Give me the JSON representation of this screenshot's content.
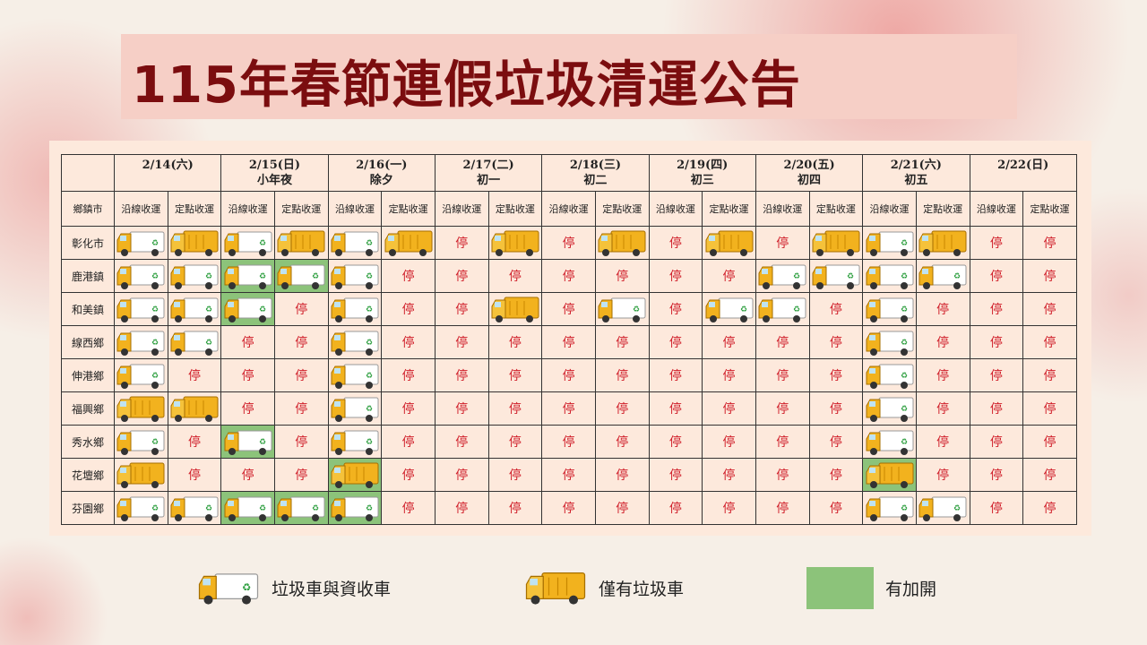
{
  "title": "115年春節連假垃圾清運公告",
  "table": {
    "corner": "鄉鎮市",
    "dates": [
      {
        "date": "2/14(六)"
      },
      {
        "date": "2/15(日)",
        "note": "小年夜"
      },
      {
        "date": "2/16(一)",
        "note": "除夕"
      },
      {
        "date": "2/17(二)",
        "note": "初一"
      },
      {
        "date": "2/18(三)",
        "note": "初二"
      },
      {
        "date": "2/19(四)",
        "note": "初三"
      },
      {
        "date": "2/20(五)",
        "note": "初四"
      },
      {
        "date": "2/21(六)",
        "note": "初五"
      },
      {
        "date": "2/22(日)"
      }
    ],
    "collection_types": [
      "沿線收運",
      "定點收運"
    ],
    "rows": [
      {
        "town": "彰化市",
        "cells": [
          {
            "truck": "both"
          },
          {
            "truck": "garbage"
          },
          {
            "truck": "both"
          },
          {
            "truck": "garbage"
          },
          {
            "truck": "both"
          },
          {
            "truck": "garbage"
          },
          "停",
          {
            "truck": "garbage"
          },
          "停",
          {
            "truck": "garbage"
          },
          "停",
          {
            "truck": "garbage"
          },
          "停",
          {
            "truck": "garbage"
          },
          {
            "truck": "both"
          },
          {
            "truck": "garbage"
          },
          "停",
          "停"
        ]
      },
      {
        "town": "鹿港鎮",
        "cells": [
          {
            "truck": "both"
          },
          {
            "truck": "both"
          },
          {
            "truck": "both",
            "added": true
          },
          {
            "truck": "both",
            "added": true
          },
          {
            "truck": "both"
          },
          "停",
          "停",
          "停",
          "停",
          "停",
          "停",
          "停",
          {
            "truck": "both"
          },
          {
            "truck": "both"
          },
          {
            "truck": "both"
          },
          {
            "truck": "both"
          },
          "停",
          "停"
        ]
      },
      {
        "town": "和美鎮",
        "cells": [
          {
            "truck": "both"
          },
          {
            "truck": "both"
          },
          {
            "truck": "both",
            "added": true
          },
          "停",
          {
            "truck": "both"
          },
          "停",
          "停",
          {
            "truck": "garbage"
          },
          "停",
          {
            "truck": "both"
          },
          "停",
          {
            "truck": "both"
          },
          {
            "truck": "both"
          },
          "停",
          {
            "truck": "both"
          },
          "停",
          "停",
          "停"
        ]
      },
      {
        "town": "線西鄉",
        "cells": [
          {
            "truck": "both"
          },
          {
            "truck": "both"
          },
          "停",
          "停",
          {
            "truck": "both"
          },
          "停",
          "停",
          "停",
          "停",
          "停",
          "停",
          "停",
          "停",
          "停",
          {
            "truck": "both"
          },
          "停",
          "停",
          "停"
        ]
      },
      {
        "town": "伸港鄉",
        "cells": [
          {
            "truck": "both"
          },
          "停",
          "停",
          "停",
          {
            "truck": "both"
          },
          "停",
          "停",
          "停",
          "停",
          "停",
          "停",
          "停",
          "停",
          "停",
          {
            "truck": "both"
          },
          "停",
          "停",
          "停"
        ]
      },
      {
        "town": "福興鄉",
        "cells": [
          {
            "truck": "garbage"
          },
          {
            "truck": "garbage"
          },
          "停",
          "停",
          {
            "truck": "both"
          },
          "停",
          "停",
          "停",
          "停",
          "停",
          "停",
          "停",
          "停",
          "停",
          {
            "truck": "both"
          },
          "停",
          "停",
          "停"
        ]
      },
      {
        "town": "秀水鄉",
        "cells": [
          {
            "truck": "both"
          },
          "停",
          {
            "truck": "both",
            "added": true
          },
          "停",
          {
            "truck": "both"
          },
          "停",
          "停",
          "停",
          "停",
          "停",
          "停",
          "停",
          "停",
          "停",
          {
            "truck": "both"
          },
          "停",
          "停",
          "停"
        ]
      },
      {
        "town": "花壇鄉",
        "cells": [
          {
            "truck": "garbage"
          },
          "停",
          "停",
          "停",
          {
            "truck": "garbage",
            "added": true
          },
          "停",
          "停",
          "停",
          "停",
          "停",
          "停",
          "停",
          "停",
          "停",
          {
            "truck": "garbage",
            "added": true
          },
          "停",
          "停",
          "停"
        ]
      },
      {
        "town": "芬園鄉",
        "cells": [
          {
            "truck": "both"
          },
          {
            "truck": "both"
          },
          {
            "truck": "both",
            "added": true
          },
          {
            "truck": "both",
            "added": true
          },
          {
            "truck": "both",
            "added": true
          },
          "停",
          "停",
          "停",
          "停",
          "停",
          "停",
          "停",
          "停",
          "停",
          {
            "truck": "both"
          },
          {
            "truck": "both"
          },
          "停",
          "停"
        ]
      }
    ]
  },
  "legend": [
    {
      "truck": "both",
      "label": "垃圾車與資收車"
    },
    {
      "truck": "garbage",
      "label": "僅有垃圾車"
    },
    {
      "added": true,
      "label": "有加開"
    }
  ]
}
